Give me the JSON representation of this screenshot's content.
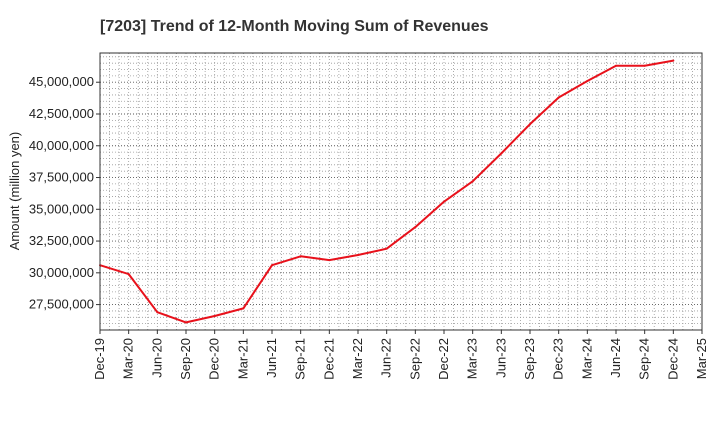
{
  "chart_data": {
    "type": "line",
    "title": "[7203]  Trend of 12-Month Moving Sum of Revenues",
    "ylabel": "Amount (million yen)",
    "xlabel": "",
    "categories": [
      "Dec-19",
      "Mar-20",
      "Jun-20",
      "Sep-20",
      "Dec-20",
      "Mar-21",
      "Jun-21",
      "Sep-21",
      "Dec-21",
      "Mar-22",
      "Jun-22",
      "Sep-22",
      "Dec-22",
      "Mar-23",
      "Jun-23",
      "Sep-23",
      "Dec-23",
      "Mar-24",
      "Jun-24",
      "Sep-24",
      "Dec-24",
      "Mar-25"
    ],
    "y_tick_labels": [
      "27,500,000",
      "30,000,000",
      "32,500,000",
      "35,000,000",
      "37,500,000",
      "40,000,000",
      "42,500,000",
      "45,000,000"
    ],
    "y_ticks": [
      27500000,
      30000000,
      32500000,
      35000000,
      37500000,
      40000000,
      42500000,
      45000000
    ],
    "ylim": [
      25500000,
      47300000
    ],
    "grid": true,
    "series": [
      {
        "color": "#e8111b",
        "values": [
          30600000,
          29900000,
          26900000,
          26100000,
          26600000,
          27200000,
          30600000,
          31300000,
          31000000,
          31400000,
          31900000,
          33600000,
          35600000,
          37200000,
          39400000,
          41700000,
          43800000,
          45100000,
          46300000,
          46300000,
          46700000,
          null
        ]
      }
    ]
  }
}
